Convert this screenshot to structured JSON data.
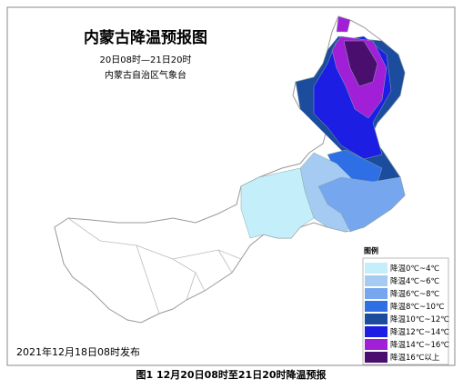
{
  "header": {
    "title": "内蒙古降温预报图",
    "period": "20日08时—21日20时",
    "issuer": "内蒙古自治区气象台"
  },
  "legend": {
    "title": "图例",
    "items": [
      {
        "label": "降温0℃~4℃",
        "color": "#c4eefa"
      },
      {
        "label": "降温4℃~6℃",
        "color": "#a6cbf2"
      },
      {
        "label": "降温6℃~8℃",
        "color": "#76a6ee"
      },
      {
        "label": "降温8℃~10℃",
        "color": "#2f6fe6"
      },
      {
        "label": "降温10℃~12℃",
        "color": "#1b4c9e"
      },
      {
        "label": "降温12℃~14℃",
        "color": "#1c1ee4"
      },
      {
        "label": "降温14℃~16℃",
        "color": "#a21fd8"
      },
      {
        "label": "降温16℃以上",
        "color": "#4a0f6e"
      }
    ]
  },
  "footer": {
    "issued": "2021年12月18日08时发布"
  },
  "caption": "图1  12月20日08时至21日20时降温预报"
}
